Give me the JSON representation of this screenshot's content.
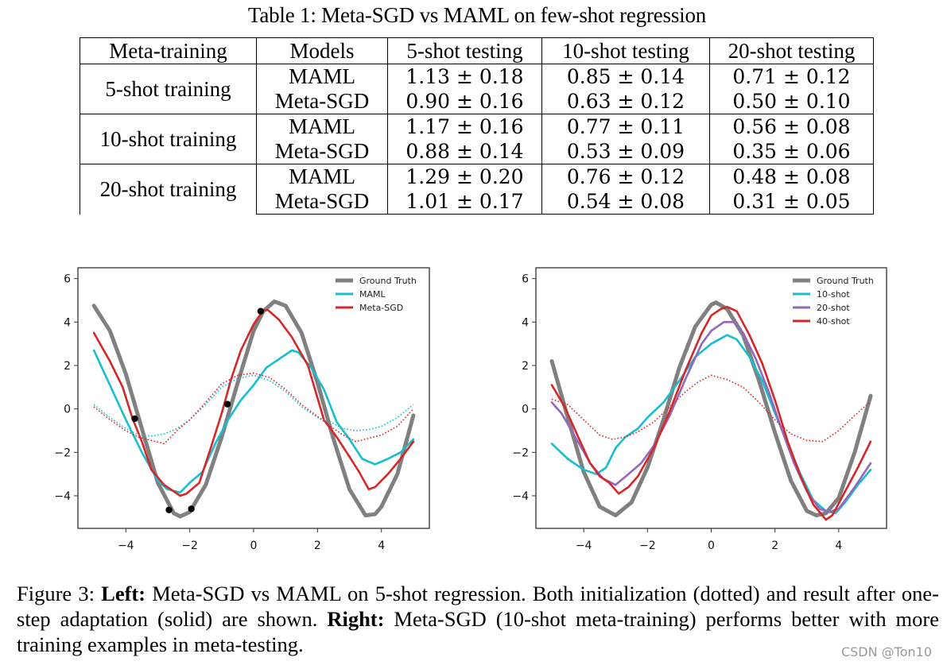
{
  "table": {
    "caption": "Table 1: Meta-SGD vs MAML on few-shot regression",
    "headers": [
      "Meta-training",
      "Models",
      "5-shot testing",
      "10-shot testing",
      "20-shot testing"
    ],
    "groups": [
      {
        "label": "5-shot training",
        "rows": [
          {
            "model": "MAML",
            "values": [
              "1.13 ± 0.18",
              "0.85 ± 0.14",
              "0.71 ± 0.12"
            ],
            "bold": false
          },
          {
            "model": "Meta-SGD",
            "values": [
              "0.90 ± 0.16",
              "0.63 ± 0.12",
              "0.50 ± 0.10"
            ],
            "bold": true
          }
        ]
      },
      {
        "label": "10-shot training",
        "rows": [
          {
            "model": "MAML",
            "values": [
              "1.17 ± 0.16",
              "0.77 ± 0.11",
              "0.56 ± 0.08"
            ],
            "bold": false
          },
          {
            "model": "Meta-SGD",
            "values": [
              "0.88 ± 0.14",
              "0.53 ± 0.09",
              "0.35 ± 0.06"
            ],
            "bold": true
          }
        ]
      },
      {
        "label": "20-shot training",
        "rows": [
          {
            "model": "MAML",
            "values": [
              "1.29 ± 0.20",
              "0.76 ± 0.12",
              "0.48 ± 0.08"
            ],
            "bold": false
          },
          {
            "model": "Meta-SGD",
            "values": [
              "1.01 ± 0.17",
              "0.54 ± 0.08",
              "0.31 ± 0.05"
            ],
            "bold": true
          }
        ]
      }
    ]
  },
  "chart_data": [
    {
      "type": "line",
      "title": "",
      "xlabel": "",
      "ylabel": "",
      "xlim": [
        -5.5,
        5.5
      ],
      "ylim": [
        -5.5,
        6.5
      ],
      "xticks": [
        -4,
        -2,
        0,
        2,
        4
      ],
      "yticks": [
        -4,
        -2,
        0,
        2,
        4,
        6
      ],
      "xtick_labels": [
        "−4",
        "−2",
        "0",
        "2",
        "4"
      ],
      "ytick_labels": [
        "−4",
        "−2",
        "0",
        "2",
        "4",
        "6"
      ],
      "grid": false,
      "legend_position": "top-right",
      "series": [
        {
          "name": "Ground Truth",
          "color": "#808080",
          "style": "solid",
          "legend": true,
          "x": [
            -5,
            -4.5,
            -4,
            -3.5,
            -3,
            -2.5,
            -2.3,
            -2,
            -1.5,
            -1,
            -0.5,
            0,
            0.3,
            0.65,
            1,
            1.5,
            2,
            2.5,
            3,
            3.5,
            3.8,
            4,
            4.5,
            5
          ],
          "y": [
            4.75,
            3.6,
            1.6,
            -0.9,
            -3.4,
            -4.8,
            -4.95,
            -4.75,
            -3.5,
            -1.3,
            1.2,
            3.6,
            4.5,
            4.95,
            4.75,
            3.5,
            1.2,
            -1.4,
            -3.7,
            -4.9,
            -4.85,
            -4.5,
            -3.0,
            -0.3
          ]
        },
        {
          "name": "MAML",
          "color": "#17becf",
          "style": "solid",
          "legend": true,
          "x": [
            -5,
            -4.5,
            -4,
            -3.5,
            -3,
            -2.7,
            -2.3,
            -2,
            -1.6,
            -1.2,
            -0.8,
            -0.4,
            0,
            0.4,
            0.8,
            1.2,
            1.4,
            1.8,
            2.2,
            2.6,
            3,
            3.4,
            3.8,
            4.2,
            4.6,
            5
          ],
          "y": [
            2.7,
            1.1,
            -0.5,
            -2.0,
            -3.3,
            -3.7,
            -3.85,
            -3.4,
            -2.9,
            -1.6,
            -0.5,
            0.4,
            1.1,
            1.9,
            2.3,
            2.7,
            2.6,
            1.9,
            0.9,
            -0.6,
            -1.4,
            -2.3,
            -2.55,
            -2.3,
            -2.0,
            -1.4
          ]
        },
        {
          "name": "Meta-SGD",
          "color": "#d62728",
          "style": "solid",
          "legend": true,
          "x": [
            -5,
            -4.5,
            -4.1,
            -3.8,
            -3.5,
            -3.2,
            -2.8,
            -2.3,
            -2.1,
            -1.7,
            -1.3,
            -1,
            -0.7,
            -0.4,
            0,
            0.3,
            0.45,
            0.8,
            1.2,
            1.7,
            2.2,
            2.6,
            3,
            3.3,
            3.6,
            3.8,
            4.2,
            4.6,
            5
          ],
          "y": [
            3.5,
            2.2,
            1.0,
            -0.4,
            -1.5,
            -2.8,
            -3.5,
            -4.0,
            -3.9,
            -3.4,
            -1.6,
            -0.2,
            1.4,
            2.7,
            3.9,
            4.55,
            4.55,
            4.1,
            3.3,
            2.0,
            -0.5,
            -1.3,
            -2.2,
            -2.9,
            -3.7,
            -3.6,
            -3.0,
            -2.3,
            -1.5
          ]
        },
        {
          "name": "MAML init",
          "color": "#17becf",
          "style": "dotted",
          "legend": false,
          "x": [
            -5,
            -4.5,
            -4,
            -3.6,
            -3.2,
            -2.8,
            -2.4,
            -2,
            -1.5,
            -1,
            -0.5,
            0,
            0.5,
            1,
            1.5,
            2,
            2.4,
            2.8,
            3.2,
            3.6,
            4,
            4.5,
            5
          ],
          "y": [
            0.2,
            -0.4,
            -0.9,
            -1.2,
            -1.25,
            -1.15,
            -0.9,
            -0.5,
            0.2,
            1.0,
            1.4,
            1.55,
            1.3,
            0.8,
            0.1,
            -0.4,
            -0.6,
            -0.9,
            -1.0,
            -0.95,
            -0.8,
            -0.4,
            0.2
          ]
        },
        {
          "name": "Meta-SGD init",
          "color": "#d62728",
          "style": "dotted",
          "legend": false,
          "x": [
            -5,
            -4.5,
            -4,
            -3.6,
            -3.2,
            -2.8,
            -2.4,
            -2,
            -1.5,
            -1,
            -0.5,
            0,
            0.5,
            1,
            1.5,
            2,
            2.4,
            2.8,
            3.2,
            3.6,
            4,
            4.5,
            5
          ],
          "y": [
            0.1,
            -0.5,
            -1.0,
            -1.3,
            -1.45,
            -1.6,
            -1.0,
            -0.5,
            0.3,
            1.15,
            1.55,
            1.65,
            1.45,
            0.9,
            0.2,
            -0.35,
            -0.8,
            -1.2,
            -1.5,
            -1.35,
            -1.2,
            -0.8,
            0.0
          ]
        }
      ],
      "points": {
        "name": "Training samples",
        "color": "#000000",
        "x": [
          -3.72,
          -2.65,
          -1.95,
          -0.82,
          0.22
        ],
        "y": [
          -0.45,
          -4.65,
          -4.6,
          0.22,
          4.5
        ]
      }
    },
    {
      "type": "line",
      "title": "",
      "xlabel": "",
      "ylabel": "",
      "xlim": [
        -5.5,
        5.5
      ],
      "ylim": [
        -5.5,
        6.5
      ],
      "xticks": [
        -4,
        -2,
        0,
        2,
        4
      ],
      "yticks": [
        -4,
        -2,
        0,
        2,
        4,
        6
      ],
      "xtick_labels": [
        "−4",
        "−2",
        "0",
        "2",
        "4"
      ],
      "ytick_labels": [
        "−4",
        "−2",
        "0",
        "2",
        "4",
        "6"
      ],
      "grid": false,
      "legend_position": "top-right",
      "series": [
        {
          "name": "Ground Truth",
          "color": "#808080",
          "style": "solid",
          "legend": true,
          "x": [
            -5,
            -4.5,
            -4,
            -3.5,
            -3,
            -2.5,
            -2,
            -1.5,
            -1,
            -0.5,
            0,
            0.15,
            0.5,
            1,
            1.5,
            2,
            2.5,
            3,
            3.3,
            3.6,
            4,
            4.5,
            5
          ],
          "y": [
            2.2,
            -0.4,
            -2.9,
            -4.5,
            -4.9,
            -4.3,
            -2.7,
            -0.5,
            1.9,
            3.8,
            4.8,
            4.9,
            4.6,
            3.4,
            1.3,
            -1.1,
            -3.3,
            -4.7,
            -4.9,
            -4.8,
            -4.1,
            -2.0,
            0.6
          ]
        },
        {
          "name": "10-shot",
          "color": "#17becf",
          "style": "solid",
          "legend": true,
          "x": [
            -5,
            -4.5,
            -4,
            -3.6,
            -3.3,
            -3,
            -2.7,
            -2.3,
            -2,
            -1.5,
            -1,
            -0.5,
            0,
            0.5,
            0.8,
            1.2,
            1.6,
            2,
            2.4,
            2.8,
            3.2,
            3.6,
            3.9,
            4.2,
            4.6,
            5
          ],
          "y": [
            -1.6,
            -2.3,
            -2.8,
            -3.0,
            -2.7,
            -1.8,
            -1.3,
            -0.9,
            -0.4,
            0.3,
            1.3,
            2.4,
            3.0,
            3.4,
            3.2,
            2.4,
            1.3,
            -0.2,
            -1.6,
            -3.0,
            -4.2,
            -4.7,
            -4.8,
            -4.3,
            -3.5,
            -2.8
          ]
        },
        {
          "name": "20-shot",
          "color": "#9467bd",
          "style": "solid",
          "legend": true,
          "x": [
            -5,
            -4.7,
            -4.3,
            -3.8,
            -3.4,
            -3,
            -2.6,
            -2.2,
            -1.8,
            -1.3,
            -0.8,
            -0.3,
            0,
            0.4,
            0.7,
            1,
            1.4,
            1.8,
            2.2,
            2.6,
            3,
            3.4,
            3.7,
            4,
            4.5,
            5
          ],
          "y": [
            0.3,
            -0.2,
            -1.2,
            -2.5,
            -3.2,
            -3.5,
            -3.0,
            -2.5,
            -1.7,
            -0.3,
            1.4,
            3.0,
            3.6,
            4.0,
            4.0,
            3.5,
            2.3,
            0.8,
            -0.9,
            -2.5,
            -3.8,
            -4.6,
            -4.75,
            -4.6,
            -3.6,
            -2.5
          ]
        },
        {
          "name": "40-shot",
          "color": "#d62728",
          "style": "solid",
          "legend": true,
          "x": [
            -5,
            -4.6,
            -4.2,
            -3.8,
            -3.5,
            -3.2,
            -2.9,
            -2.6,
            -2.3,
            -1.8,
            -1.3,
            -0.8,
            -0.3,
            0,
            0.3,
            0.5,
            0.8,
            1.2,
            1.6,
            2,
            2.4,
            2.8,
            3.2,
            3.6,
            3.8,
            4.2,
            4.6,
            5
          ],
          "y": [
            1.1,
            0.1,
            -1.2,
            -2.5,
            -3.1,
            -3.4,
            -3.9,
            -3.6,
            -3.1,
            -1.8,
            -0.1,
            1.8,
            3.5,
            4.3,
            4.6,
            4.7,
            4.5,
            3.4,
            2.1,
            0.4,
            -1.5,
            -3.1,
            -4.4,
            -5.1,
            -4.9,
            -3.8,
            -2.7,
            -1.5
          ]
        },
        {
          "name": "Initialization",
          "color": "#d62728",
          "style": "dotted",
          "legend": false,
          "x": [
            -5,
            -4.5,
            -4,
            -3.5,
            -3.1,
            -2.7,
            -2.3,
            -1.8,
            -1.3,
            -0.8,
            -0.4,
            0,
            0.5,
            1,
            1.5,
            2,
            2.5,
            3,
            3.5,
            4,
            4.5,
            5
          ],
          "y": [
            0.45,
            0.2,
            -0.5,
            -1.2,
            -1.4,
            -1.3,
            -1.05,
            -0.6,
            0.1,
            0.8,
            1.25,
            1.55,
            1.35,
            1.0,
            0.3,
            -0.5,
            -1.15,
            -1.45,
            -1.5,
            -1.0,
            -0.3,
            0.35
          ]
        }
      ]
    }
  ],
  "figure_caption": {
    "figure_label": "Figure 3: ",
    "left_label": "Left:",
    "left_text": " Meta-SGD vs MAML on 5-shot regression. Both initialization (dotted) and result after one-step adaptation (solid) are shown. ",
    "right_label": "Right:",
    "right_text": " Meta-SGD (10-shot meta-training) performs better with more training examples in meta-testing."
  },
  "watermark": "CSDN @Ton10"
}
